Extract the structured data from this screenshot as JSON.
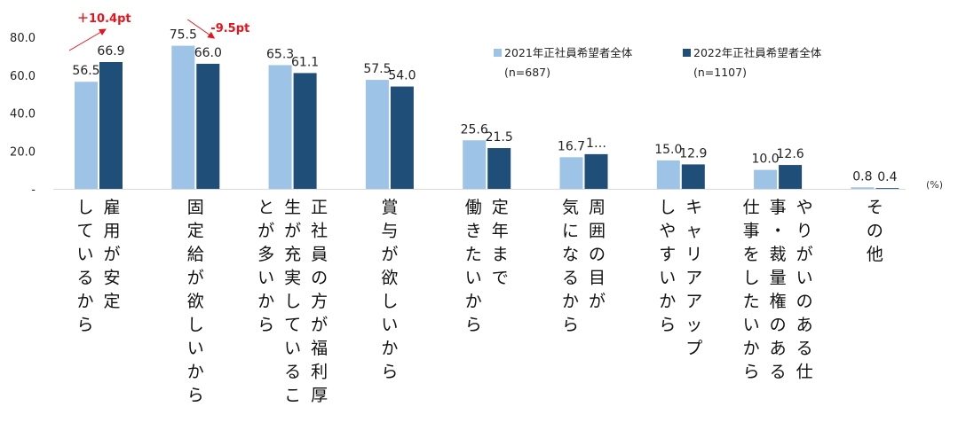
{
  "chart_data": {
    "type": "bar",
    "ylim": [
      0,
      80
    ],
    "yticks": [
      "80.0",
      "60.0",
      "40.0",
      "20.0",
      "-"
    ],
    "unit": "(%)",
    "categories": [
      [
        "雇用が安定",
        "しているから"
      ],
      [
        "固定給が欲しいから"
      ],
      [
        "正社員の方が福利厚",
        "生が充実しているこ",
        "とが多いから"
      ],
      [
        "賞与が欲しいから"
      ],
      [
        "定年まで",
        "働きたいから"
      ],
      [
        "周囲の目が",
        "気になるから"
      ],
      [
        "キャリアアップ",
        "しやすいから"
      ],
      [
        "やりがいのある仕",
        "事・裁量権のある",
        "仕事をしたいから"
      ],
      [
        "その他"
      ]
    ],
    "series": [
      {
        "name": "2021年正社員希望者全体",
        "n": "(n=687)",
        "color": "#9dc3e6",
        "values": [
          56.5,
          75.5,
          65.3,
          57.5,
          25.6,
          16.7,
          15.0,
          10.0,
          0.8
        ],
        "labels": [
          "56.5",
          "75.5",
          "65.3",
          "57.5",
          "25.6",
          "16.7",
          "15.0",
          "10.0",
          "0.8"
        ]
      },
      {
        "name": "2022年正社員希望者全体",
        "n": "(n=1107)",
        "color": "#1f4e79",
        "values": [
          66.9,
          66.0,
          61.1,
          54.0,
          21.5,
          18.3,
          12.9,
          12.6,
          0.4
        ],
        "labels": [
          "66.9",
          "66.0",
          "61.1",
          "54.0",
          "21.5",
          "1…",
          "12.9",
          "12.6",
          "0.4"
        ]
      }
    ],
    "annotations": [
      {
        "text": "＋10.4pt",
        "category": 0,
        "direction": "up"
      },
      {
        "text": "-9.5pt",
        "category": 1,
        "direction": "down"
      }
    ]
  }
}
